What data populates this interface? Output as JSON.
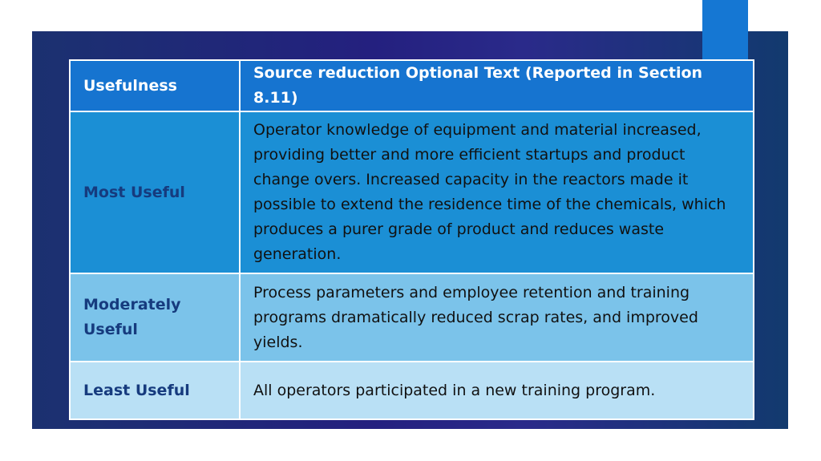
{
  "colors": {
    "panel_gradient": [
      "#1b3170",
      "#24207f",
      "#2a2a8a",
      "#123a6e"
    ],
    "accent_tab": "#1577d3",
    "header_bg": "#1674d0",
    "most_useful_bg": "#1b8fd5",
    "moderately_useful_bg": "#7bc3ea",
    "least_useful_bg": "#b9e0f5",
    "label_text": "#163b7e"
  },
  "table": {
    "headers": {
      "usefulness": "Usefulness",
      "source_reduction": "Source reduction Optional Text (Reported in Section 8.11)"
    },
    "rows": [
      {
        "label": "Most Useful",
        "text": "Operator knowledge of equipment and material increased, providing better and more efficient startups and product change overs. Increased capacity in the reactors made it possible to extend the residence time of the chemicals, which produces a purer grade of product and reduces waste generation."
      },
      {
        "label": "Moderately Useful",
        "text": "Process parameters and employee retention and training programs dramatically reduced scrap rates, and improved yields."
      },
      {
        "label": "Least Useful",
        "text": "All operators participated in a new training program."
      }
    ]
  }
}
